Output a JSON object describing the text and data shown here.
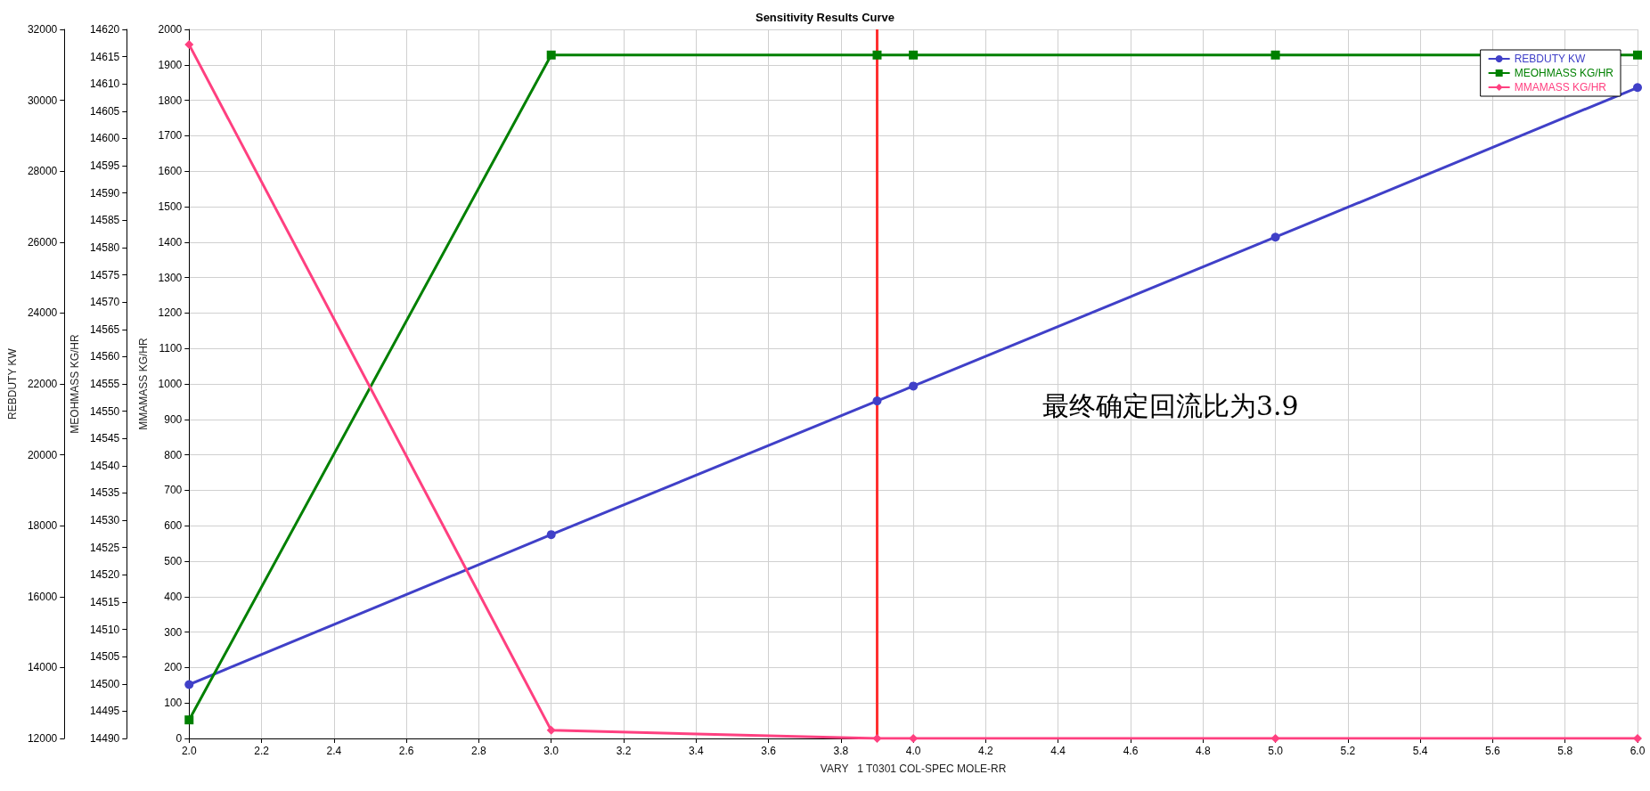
{
  "chart_data": {
    "type": "line",
    "title": "Sensitivity Results Curve",
    "xlabel": "VARY   1 T0301 COL-SPEC MOLE-RR",
    "ylabel": "REBDUTY KW",
    "y2label": "MEOHMASS KG/HR",
    "y3label": "MMAMASS KG/HR",
    "x": [
      2,
      3,
      3.9,
      4,
      5,
      6
    ],
    "series": [
      {
        "name": "REBDUTY KW",
        "color": "#4040c8",
        "axis": "y",
        "marker": "circle",
        "values": [
          13520,
          17750,
          21520,
          21940,
          26140,
          30360
        ]
      },
      {
        "name": "MEOHMASS KG/HR",
        "color": "#008000",
        "axis": "y2",
        "marker": "square",
        "values": [
          14493.4,
          14615.3,
          14615.3,
          14615.3,
          14615.3,
          14615.3
        ]
      },
      {
        "name": "MMAMASS KG/HR",
        "color": "#ff4080",
        "axis": "y3",
        "marker": "diamond",
        "values": [
          1957,
          23,
          0,
          0,
          0,
          0
        ]
      }
    ],
    "xlim": [
      2,
      6
    ],
    "xticks": [
      {
        "value": 2,
        "label": "2.0"
      },
      2.2,
      2.4,
      2.6,
      2.8,
      {
        "value": 3,
        "label": "3.0"
      },
      3.2,
      3.4,
      3.6,
      3.8,
      {
        "value": 4,
        "label": "4.0"
      },
      4.2,
      4.4,
      4.6,
      4.8,
      {
        "value": 5,
        "label": "5.0"
      },
      5.2,
      5.4,
      5.6,
      5.8,
      {
        "value": 6,
        "label": "6.0"
      }
    ],
    "ylim": [
      12000,
      32000
    ],
    "yticks": [
      12000,
      14000,
      16000,
      18000,
      20000,
      22000,
      24000,
      26000,
      28000,
      30000,
      32000
    ],
    "y2lim": [
      14490,
      14620
    ],
    "y2ticks": [
      14490,
      14495,
      14500,
      14505,
      14510,
      14515,
      14520,
      14525,
      14530,
      14535,
      14540,
      14545,
      14550,
      14555,
      14560,
      14565,
      14570,
      14575,
      14580,
      14585,
      14590,
      14595,
      14600,
      14605,
      14610,
      14615,
      14620
    ],
    "y3lim": [
      0,
      2000
    ],
    "y3ticks": [
      0,
      100,
      200,
      300,
      400,
      500,
      600,
      700,
      800,
      900,
      1000,
      1100,
      1200,
      1300,
      1400,
      1500,
      1600,
      1700,
      1800,
      1900,
      2000
    ],
    "ref_lines": [
      {
        "axis": "x",
        "value": 3.9,
        "color": "#ff3030",
        "line_style": "solid"
      }
    ],
    "annotations": [
      "最终确定回流比为3.9"
    ],
    "grid": true,
    "legend": "top right",
    "line_style": "solid"
  }
}
